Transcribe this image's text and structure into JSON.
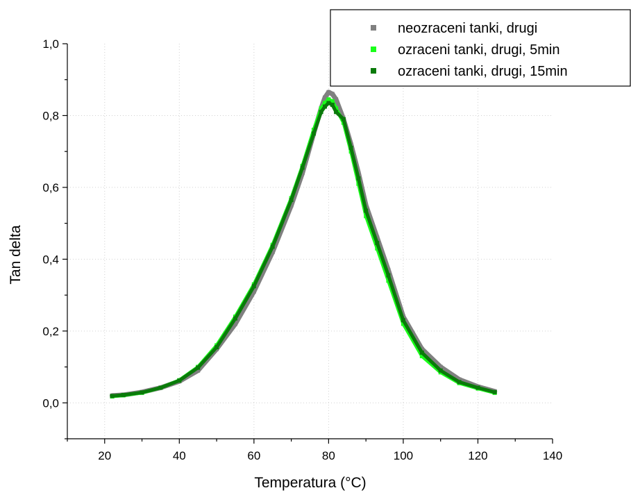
{
  "chart_data": {
    "type": "scatter",
    "title": "",
    "xlabel": "Temperatura (°C)",
    "ylabel": "Tan delta",
    "xlim": [
      10,
      140
    ],
    "ylim": [
      -0.1,
      1.0
    ],
    "x_ticks": [
      20,
      40,
      60,
      80,
      100,
      120,
      140
    ],
    "x_tick_labels": [
      "20",
      "40",
      "60",
      "80",
      "100",
      "120",
      "140"
    ],
    "y_ticks": [
      0.0,
      0.2,
      0.4,
      0.6,
      0.8,
      1.0
    ],
    "y_tick_labels": [
      "0,0",
      "0,2",
      "0,4",
      "0,6",
      "0,8",
      "1,0"
    ],
    "grid": true,
    "legend_position": "top-right",
    "series": [
      {
        "name": "neozraceni tanki, drugi",
        "color": "#808080",
        "x": [
          22,
          25,
          30,
          35,
          40,
          45,
          50,
          55,
          60,
          65,
          70,
          73,
          76,
          78,
          79,
          80,
          81,
          82,
          84,
          86,
          88,
          90,
          93,
          96,
          100,
          105,
          110,
          115,
          120,
          124.5
        ],
        "y": [
          0.02,
          0.022,
          0.03,
          0.042,
          0.06,
          0.09,
          0.15,
          0.22,
          0.31,
          0.42,
          0.55,
          0.64,
          0.75,
          0.82,
          0.85,
          0.865,
          0.86,
          0.845,
          0.79,
          0.72,
          0.64,
          0.55,
          0.46,
          0.37,
          0.24,
          0.15,
          0.1,
          0.065,
          0.045,
          0.032
        ]
      },
      {
        "name": "ozraceni tanki, drugi, 5min",
        "color": "#1aff1a",
        "x": [
          22,
          25,
          30,
          35,
          40,
          45,
          50,
          55,
          60,
          65,
          70,
          73,
          76,
          78,
          79,
          80,
          81,
          82,
          84,
          86,
          88,
          90,
          93,
          96,
          100,
          105,
          110,
          115,
          120,
          124.5
        ],
        "y": [
          0.018,
          0.021,
          0.028,
          0.042,
          0.063,
          0.1,
          0.16,
          0.24,
          0.33,
          0.44,
          0.57,
          0.66,
          0.76,
          0.82,
          0.835,
          0.845,
          0.84,
          0.82,
          0.78,
          0.7,
          0.61,
          0.52,
          0.43,
          0.34,
          0.22,
          0.13,
          0.085,
          0.055,
          0.04,
          0.028
        ]
      },
      {
        "name": "ozraceni tanki, drugi, 15min",
        "color": "#0a7a0a",
        "x": [
          22,
          25,
          30,
          35,
          40,
          45,
          50,
          55,
          60,
          65,
          70,
          73,
          76,
          78,
          79,
          80,
          81,
          82,
          84,
          86,
          88,
          90,
          93,
          96,
          100,
          105,
          110,
          115,
          120,
          124.5
        ],
        "y": [
          0.019,
          0.022,
          0.029,
          0.042,
          0.062,
          0.098,
          0.155,
          0.235,
          0.325,
          0.435,
          0.565,
          0.655,
          0.75,
          0.81,
          0.825,
          0.835,
          0.83,
          0.81,
          0.79,
          0.71,
          0.625,
          0.535,
          0.445,
          0.355,
          0.23,
          0.14,
          0.09,
          0.058,
          0.042,
          0.03
        ]
      }
    ]
  }
}
